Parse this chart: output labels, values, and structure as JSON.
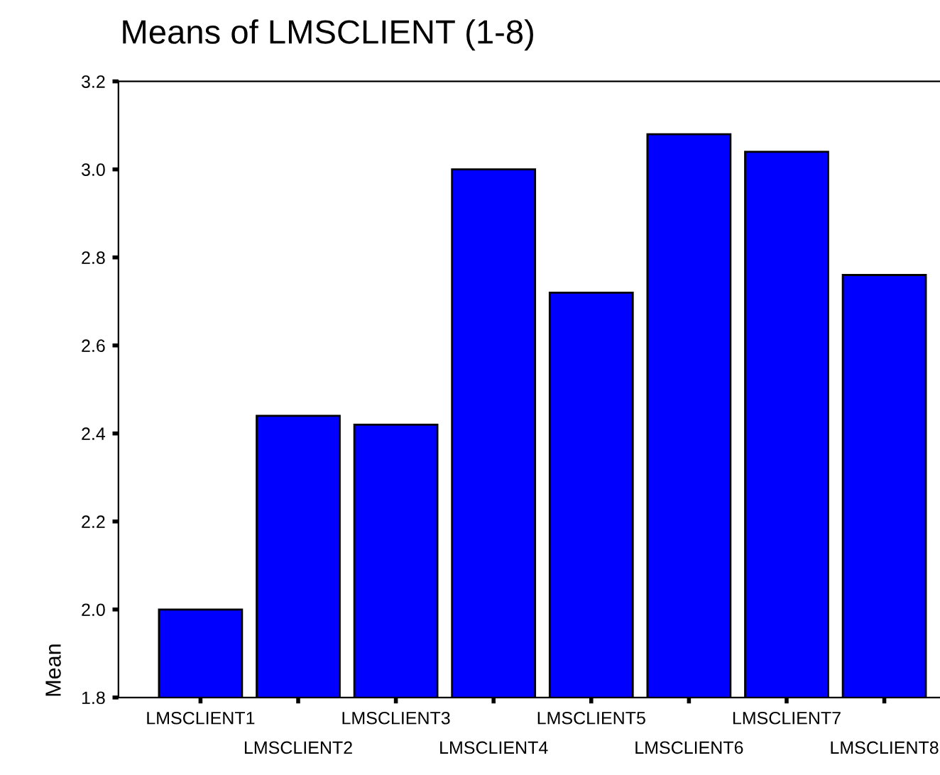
{
  "chart_data": {
    "type": "bar",
    "title": "Means of LMSCLIENT (1-8)",
    "ylabel": "Mean",
    "categories": [
      "LMSCLIENT1",
      "LMSCLIENT2",
      "LMSCLIENT3",
      "LMSCLIENT4",
      "LMSCLIENT5",
      "LMSCLIENT6",
      "LMSCLIENT7",
      "LMSCLIENT8"
    ],
    "values": [
      2.0,
      2.44,
      2.42,
      3.0,
      2.72,
      3.08,
      3.04,
      2.76
    ],
    "color": "#0000ff",
    "ylim": [
      1.8,
      3.2
    ],
    "yticks": [
      1.8,
      {
        "value": 2.0,
        "label": "2.0"
      },
      2.2,
      2.4,
      2.6,
      2.8,
      {
        "value": 3.0,
        "label": "3.0"
      },
      3.2
    ],
    "grid": false,
    "legend": false
  }
}
